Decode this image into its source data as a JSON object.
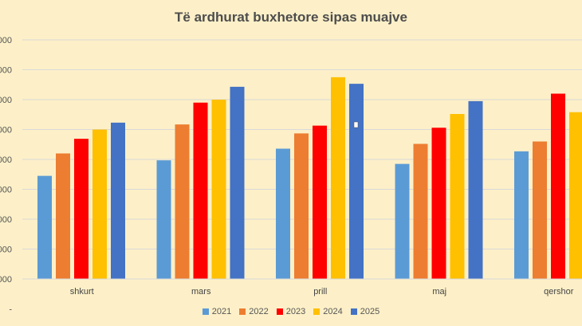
{
  "chart_data": {
    "type": "bar",
    "title": "Të ardhurat buxhetore sipas muajve",
    "categories": [
      "shkurt",
      "mars",
      "prill",
      "maj",
      "qershor"
    ],
    "series": [
      {
        "name": "2021",
        "color": "#5b9bd5",
        "values": [
          34.5,
          39.7,
          43.6,
          38.5,
          42.7
        ]
      },
      {
        "name": "2022",
        "color": "#ed7d31",
        "values": [
          42.0,
          51.7,
          48.7,
          45.2,
          46.0
        ]
      },
      {
        "name": "2023",
        "color": "#ff0000",
        "values": [
          46.9,
          59.0,
          51.3,
          50.6,
          62.0
        ]
      },
      {
        "name": "2024",
        "color": "#ffc000",
        "values": [
          50.0,
          60.0,
          67.5,
          55.2,
          55.8
        ]
      },
      {
        "name": "2025",
        "color": "#4472c4",
        "values": [
          52.3,
          64.3,
          65.3,
          59.5,
          null
        ]
      }
    ],
    "yticks": [
      -10,
      0,
      10,
      20,
      30,
      40,
      50,
      60,
      70,
      80
    ],
    "ytick_labels": [
      "-",
      "000",
      "000",
      "000",
      "000",
      "000",
      "000",
      "000",
      "000",
      "000"
    ],
    "ylim": [
      0,
      80
    ],
    "xlabel": "",
    "ylabel": "",
    "legend_position": "bottom"
  }
}
